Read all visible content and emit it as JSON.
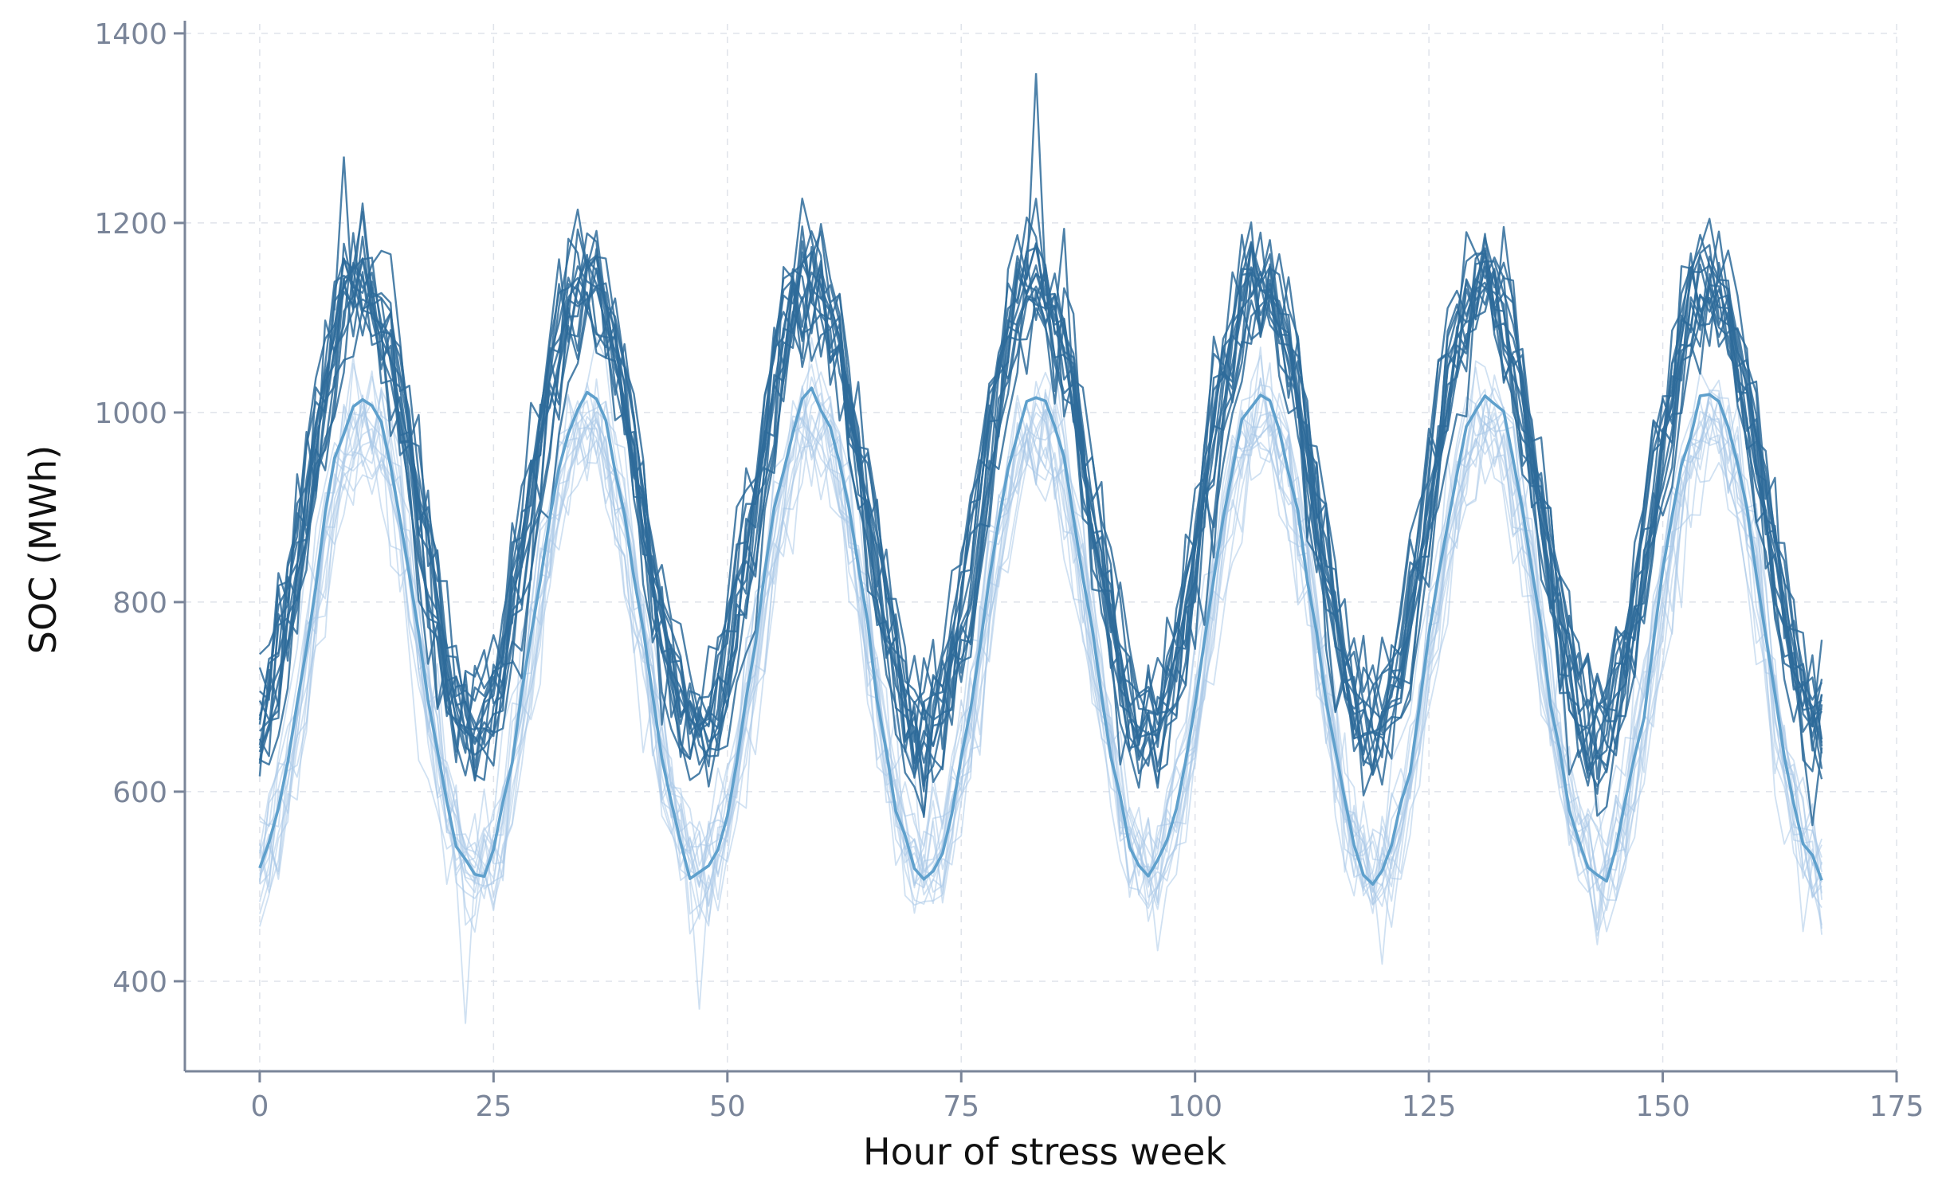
{
  "chart_data": {
    "type": "line",
    "title": "",
    "xlabel": "Hour of stress week",
    "ylabel": "SOC (MWh)",
    "xlim": [
      -8,
      175
    ],
    "ylim": [
      305,
      1410
    ],
    "x_ticks": [
      0,
      25,
      50,
      75,
      100,
      125,
      150,
      175
    ],
    "y_ticks": [
      400,
      600,
      800,
      1000,
      1200,
      1400
    ],
    "x_tick_labels": [
      "0",
      "25",
      "50",
      "75",
      "100",
      "125",
      "150",
      "175"
    ],
    "y_tick_labels": [
      "400",
      "600",
      "800",
      "1000",
      "1200",
      "1400"
    ],
    "grid": true,
    "legend": "none",
    "hours": {
      "start": 0,
      "end": 167,
      "step": 1
    },
    "period_hours": 24,
    "series_groups": [
      {
        "group": "dark ensemble",
        "color": "#2e6b9a",
        "count": 16,
        "opacity": 0.85,
        "stroke": 2.4,
        "mean": 900,
        "amplitude": 240,
        "peak_hour": 11,
        "noise": 45
      },
      {
        "group": "light ensemble",
        "color": "#a9c8e8",
        "count": 16,
        "opacity": 0.55,
        "stroke": 1.8,
        "mean": 750,
        "amplitude": 245,
        "peak_hour": 11,
        "noise": 40
      },
      {
        "group": "mean (light)",
        "color": "#5fa0cc",
        "count": 1,
        "opacity": 1,
        "stroke": 3.6,
        "mean": 755,
        "amplitude": 240,
        "peak_hour": 11,
        "noise": 8
      }
    ],
    "sample_peaks": [
      {
        "series": "dark ensemble",
        "hour": 83,
        "value": 1358
      },
      {
        "series": "dark ensemble",
        "hour": 9,
        "value": 1270
      }
    ],
    "sample_troughs": [
      {
        "series": "light ensemble",
        "hour": 22,
        "value": 355
      },
      {
        "series": "light ensemble",
        "hour": 47,
        "value": 370
      }
    ],
    "colors": {
      "axis": "#7a8599",
      "grid": "#dfe3ea",
      "tick_text": "#7a8599",
      "title_text": "#111111"
    }
  }
}
